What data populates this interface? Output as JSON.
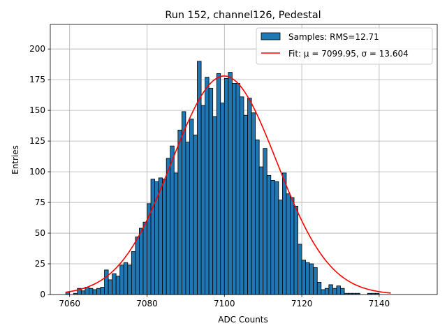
{
  "chart_data": {
    "type": "bar",
    "title": "Run 152, channel126, Pedestal",
    "xlabel": "ADC Counts",
    "ylabel": "Entries",
    "xlim": [
      7055,
      7155
    ],
    "ylim": [
      0,
      220
    ],
    "xticks": [
      7060,
      7080,
      7100,
      7120,
      7140
    ],
    "yticks": [
      0,
      25,
      50,
      75,
      100,
      125,
      150,
      175,
      200
    ],
    "grid": true,
    "legend_position": "top-right",
    "colors": {
      "bars": "#1f77b4",
      "bar_edge": "#000000",
      "fit": "#ff0000",
      "grid": "#b0b0b0"
    },
    "histogram": {
      "name": "Samples: RMS=12.71",
      "bin_width": 1,
      "bin_start": 7059,
      "counts": [
        2,
        0,
        1,
        5,
        3,
        6,
        5,
        4,
        5,
        6,
        20,
        12,
        17,
        15,
        24,
        26,
        24,
        35,
        47,
        54,
        59,
        74,
        94,
        92,
        95,
        94,
        111,
        121,
        99,
        134,
        149,
        124,
        143,
        130,
        190,
        154,
        177,
        168,
        145,
        180,
        156,
        176,
        181,
        172,
        172,
        161,
        146,
        160,
        148,
        126,
        104,
        119,
        97,
        93,
        92,
        77,
        99,
        82,
        79,
        72,
        41,
        28,
        26,
        25,
        22,
        10,
        4,
        5,
        8,
        5,
        7,
        5,
        1,
        1,
        1,
        1,
        0,
        0,
        1,
        1,
        1
      ]
    },
    "fit": {
      "name": "Fit: μ = 7099.95, σ = 13.604",
      "type": "gaussian",
      "mu": 7099.95,
      "sigma": 13.604,
      "amplitude": 178,
      "x_range": [
        7059,
        7143
      ]
    }
  }
}
